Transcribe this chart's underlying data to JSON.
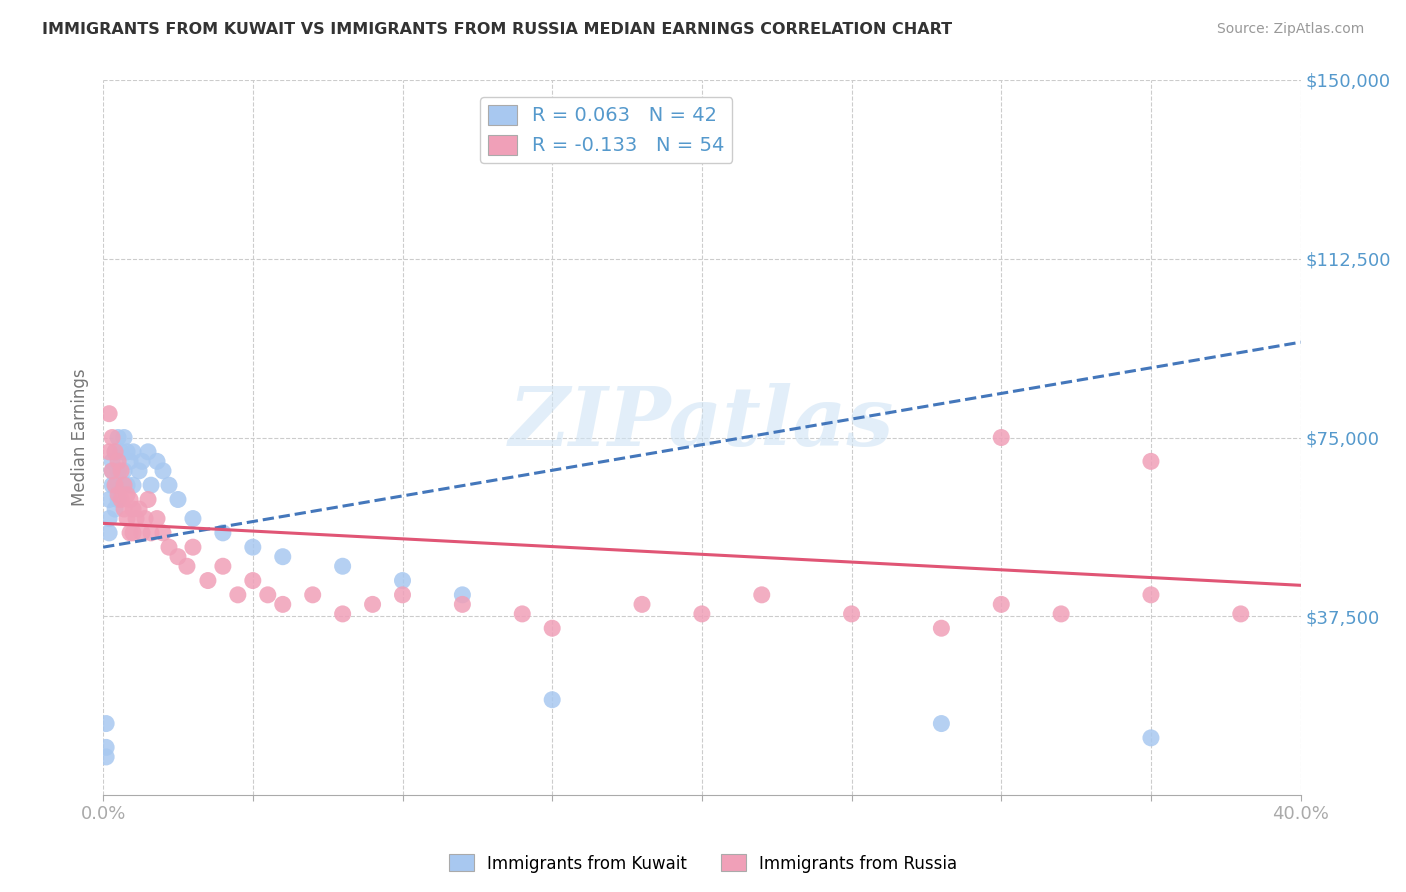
{
  "title": "IMMIGRANTS FROM KUWAIT VS IMMIGRANTS FROM RUSSIA MEDIAN EARNINGS CORRELATION CHART",
  "source": "Source: ZipAtlas.com",
  "ylabel": "Median Earnings",
  "xlim": [
    0.0,
    0.4
  ],
  "ylim": [
    0,
    150000
  ],
  "xticks": [
    0.0,
    0.05,
    0.1,
    0.15,
    0.2,
    0.25,
    0.3,
    0.35,
    0.4
  ],
  "xticklabels": [
    "0.0%",
    "",
    "",
    "",
    "",
    "",
    "",
    "",
    "40.0%"
  ],
  "yticks": [
    0,
    37500,
    75000,
    112500,
    150000
  ],
  "yticklabels": [
    "",
    "$37,500",
    "$75,000",
    "$112,500",
    "$150,000"
  ],
  "kuwait_color": "#a8c8f0",
  "russia_color": "#f0a0b8",
  "kuwait_trend_color": "#4477bb",
  "russia_trend_color": "#e05575",
  "legend_kuwait": "R = 0.063   N = 42",
  "legend_russia": "R = -0.133   N = 54",
  "watermark": "ZIPatlas",
  "background_color": "#ffffff",
  "grid_color": "#cccccc",
  "title_color": "#333333",
  "tick_label_color": "#5599cc",
  "kuwait_x": [
    0.001,
    0.001,
    0.001,
    0.002,
    0.002,
    0.002,
    0.003,
    0.003,
    0.003,
    0.004,
    0.004,
    0.004,
    0.005,
    0.005,
    0.005,
    0.006,
    0.006,
    0.007,
    0.007,
    0.008,
    0.008,
    0.009,
    0.01,
    0.01,
    0.012,
    0.013,
    0.015,
    0.016,
    0.018,
    0.02,
    0.022,
    0.025,
    0.03,
    0.04,
    0.05,
    0.06,
    0.08,
    0.1,
    0.12,
    0.15,
    0.28,
    0.35
  ],
  "kuwait_y": [
    10000,
    15000,
    8000,
    55000,
    62000,
    58000,
    65000,
    70000,
    68000,
    72000,
    65000,
    60000,
    75000,
    68000,
    62000,
    72000,
    65000,
    75000,
    68000,
    72000,
    65000,
    70000,
    72000,
    65000,
    68000,
    70000,
    72000,
    65000,
    70000,
    68000,
    65000,
    62000,
    58000,
    55000,
    52000,
    50000,
    48000,
    45000,
    42000,
    20000,
    15000,
    12000
  ],
  "russia_x": [
    0.002,
    0.002,
    0.003,
    0.003,
    0.004,
    0.004,
    0.005,
    0.005,
    0.006,
    0.006,
    0.007,
    0.007,
    0.008,
    0.008,
    0.009,
    0.009,
    0.01,
    0.01,
    0.011,
    0.012,
    0.013,
    0.014,
    0.015,
    0.016,
    0.018,
    0.02,
    0.022,
    0.025,
    0.028,
    0.03,
    0.035,
    0.04,
    0.045,
    0.05,
    0.055,
    0.06,
    0.07,
    0.08,
    0.09,
    0.1,
    0.12,
    0.14,
    0.15,
    0.18,
    0.2,
    0.22,
    0.25,
    0.28,
    0.3,
    0.32,
    0.35,
    0.38,
    0.3,
    0.35
  ],
  "russia_y": [
    80000,
    72000,
    75000,
    68000,
    72000,
    65000,
    70000,
    63000,
    68000,
    62000,
    65000,
    60000,
    63000,
    58000,
    62000,
    55000,
    60000,
    55000,
    58000,
    60000,
    55000,
    58000,
    62000,
    55000,
    58000,
    55000,
    52000,
    50000,
    48000,
    52000,
    45000,
    48000,
    42000,
    45000,
    42000,
    40000,
    42000,
    38000,
    40000,
    42000,
    40000,
    38000,
    35000,
    40000,
    38000,
    42000,
    38000,
    35000,
    40000,
    38000,
    42000,
    38000,
    75000,
    70000
  ],
  "kuwait_trend_x": [
    0.0,
    0.4
  ],
  "kuwait_trend_y": [
    52000,
    95000
  ],
  "russia_trend_x": [
    0.0,
    0.4
  ],
  "russia_trend_y": [
    57000,
    44000
  ]
}
